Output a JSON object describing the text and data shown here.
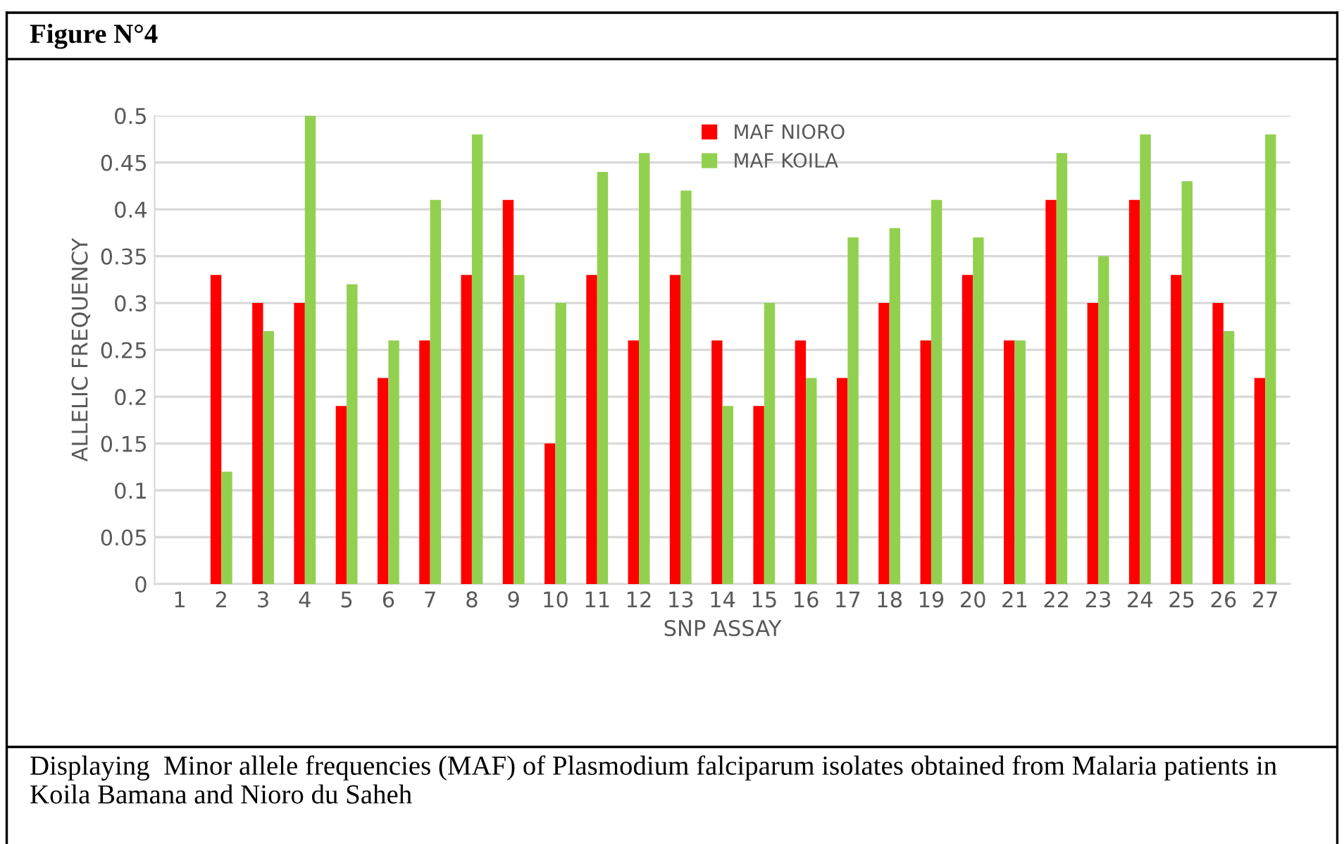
{
  "chart_data": {
    "type": "bar",
    "title": "Figure N°4",
    "xlabel": "SNP ASSAY",
    "ylabel": "ALLELIC FREQUENCY",
    "categories": [
      "1",
      "2",
      "3",
      "4",
      "5",
      "6",
      "7",
      "8",
      "9",
      "10",
      "11",
      "12",
      "13",
      "14",
      "15",
      "16",
      "17",
      "18",
      "19",
      "20",
      "21",
      "22",
      "23",
      "24",
      "25",
      "26",
      "27"
    ],
    "series": [
      {
        "name": "MAF NIORO",
        "color": "#ff0000",
        "values": [
          null,
          0.33,
          0.3,
          0.3,
          0.19,
          0.22,
          0.26,
          0.33,
          0.41,
          0.15,
          0.33,
          0.26,
          0.33,
          0.26,
          0.19,
          0.26,
          0.22,
          0.3,
          0.26,
          0.33,
          0.26,
          0.41,
          0.3,
          0.41,
          0.33,
          0.3,
          0.22
        ]
      },
      {
        "name": "MAF KOILA",
        "color": "#92d050",
        "values": [
          null,
          0.12,
          0.27,
          0.5,
          0.32,
          0.26,
          0.41,
          0.48,
          0.33,
          0.3,
          0.44,
          0.46,
          0.42,
          0.19,
          0.3,
          0.22,
          0.37,
          0.38,
          0.41,
          0.37,
          0.26,
          0.46,
          0.35,
          0.48,
          0.43,
          0.27,
          0.48
        ]
      }
    ],
    "ylim": [
      0,
      0.5
    ],
    "yticks": [
      0,
      0.05,
      0.1,
      0.15,
      0.2,
      0.25,
      0.3,
      0.35,
      0.4,
      0.45,
      0.5
    ],
    "grid": "y",
    "legend": "top",
    "annotations": [
      "Displaying  Minor allele frequencies (MAF) of Plasmodium falciparum isolates obtained from Malaria patients in Koila Bamana and Nioro du Saheh"
    ]
  }
}
